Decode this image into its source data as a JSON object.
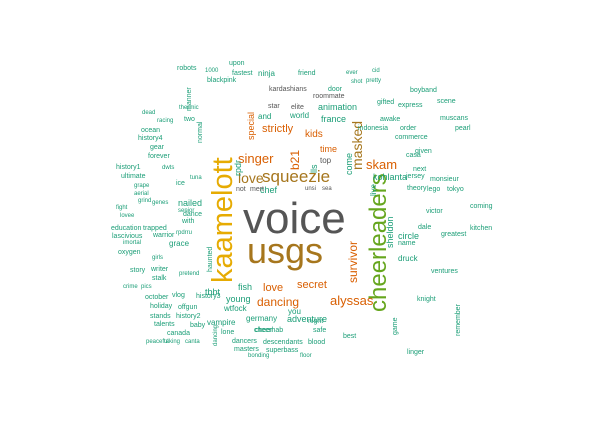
{
  "words": {
    "voice": "voice",
    "usgs": "usgs",
    "kaamelott": "kaamelott",
    "cheerleaders": "cheerleaders",
    "squeezie": "squeezie",
    "love": "love",
    "singer": "singer",
    "masked": "masked",
    "skam": "skam",
    "b21": "b21",
    "survivor": "survivor",
    "alyssas": "alyssas",
    "dancing": "dancing",
    "secret": "secret",
    "kids": "kids",
    "strictly": "strictly",
    "time": "time",
    "top": "top",
    "france": "france",
    "animation": "animation",
    "world": "world",
    "special": "special",
    "chef": "chef",
    "adventure": "adventure",
    "kohlanta": "kohlanta",
    "nailed": "nailed",
    "tbbt": "tbbt",
    "young": "young",
    "germany": "germany",
    "you": "you",
    "lls": "lls",
    "rpdr": "rpdr",
    "come": "come",
    "live": "live",
    "fish": "fish",
    "wtfock": "wtfock",
    "sheldon": "sheldon",
    "circle": "circle",
    "druck": "druck",
    "name": "name",
    "cheer": "cheer",
    "ninja": "ninja",
    "kardashians": "kardashians",
    "roommate": "roommate",
    "elite": "elite",
    "star": "star",
    "and": "and",
    "mert": "mert",
    "unsi": "unsi",
    "sea": "sea",
    "not": "not",
    "nl": "nl",
    "descendants": "descendants",
    "superbass": "superbass",
    "blood": "blood",
    "cheerhab": "cheerhab",
    "dancers": "dancers",
    "masters": "masters",
    "vampire": "vampire",
    "history3": "history3",
    "history2": "history2",
    "offgun": "offgun",
    "holiday": "holiday",
    "october": "october",
    "vlog": "vlog",
    "grace": "grace",
    "with": "with",
    "unbelievable": "unbelievable",
    "stalk": "stalk",
    "writer": "writer",
    "story": "story",
    "warrior": "warrior",
    "education": "education",
    "trapped": "trapped",
    "lascivious": "lascivious",
    "ultimate": "ultimate",
    "forever": "forever",
    "ocean": "ocean",
    "gear": "gear",
    "history4": "history4",
    "history1": "history1",
    "crime": "crime",
    "oxygen": "oxygen",
    "talents": "talents",
    "stands": "stands",
    "canada": "canada",
    "awake": "awake",
    "indonesia": "indonesia",
    "commerce": "commerce",
    "express": "express",
    "gifted": "gifted",
    "door": "door",
    "friend": "friend",
    "fastest": "fastest",
    "blackpink": "blackpink",
    "upon": "upon",
    "robots": "robots",
    "casa": "casa",
    "tokyo": "tokyo",
    "lego": "lego",
    "jersey": "jersey",
    "theory": "theory",
    "victor": "victor",
    "ventures": "ventures",
    "knight": "knight",
    "greatest": "greatest",
    "kitchen": "kitchen",
    "coming": "coming",
    "remember": "remember",
    "monsieur": "monsieur",
    "order": "order",
    "given": "given",
    "next": "next",
    "tale": "tale",
    "dale": "dale",
    "boyband": "boyband",
    "scene": "scene",
    "muscans": "muscans",
    "pearl": "pearl",
    "linger": "linger",
    "game": "game",
    "safe": "safe",
    "night": "night",
    "lone": "lone",
    "best": "best",
    "floor": "floor",
    "bonding": "bonding",
    "taking": "taking",
    "canta": "canta",
    "peaceful": "peaceful",
    "baby": "baby",
    "ice": "ice",
    "dance": "dance",
    "tuna": "tuna",
    "fight": "fight",
    "love2": "lovee",
    "manner": "manner",
    "thermic": "thermic",
    "racing": "racing",
    "dead": "dead",
    "shot": "shot",
    "cid": "cid",
    "pretty": "pretty",
    "ever": "ever",
    "two": "two",
    "normal": "normal",
    "dwts": "dwts",
    "senior": "senior",
    "grape": "grape",
    "aerial": "aerial",
    "imortal": "imortal",
    "pics": "pics",
    "rpdrru": "rpdrru",
    "genes": "genes",
    "grind": "grind",
    "girls": "girls",
    "haunted": "haunted",
    "1000": "1000",
    "pretend": "pretend",
    "dancing2": "dancing"
  }
}
